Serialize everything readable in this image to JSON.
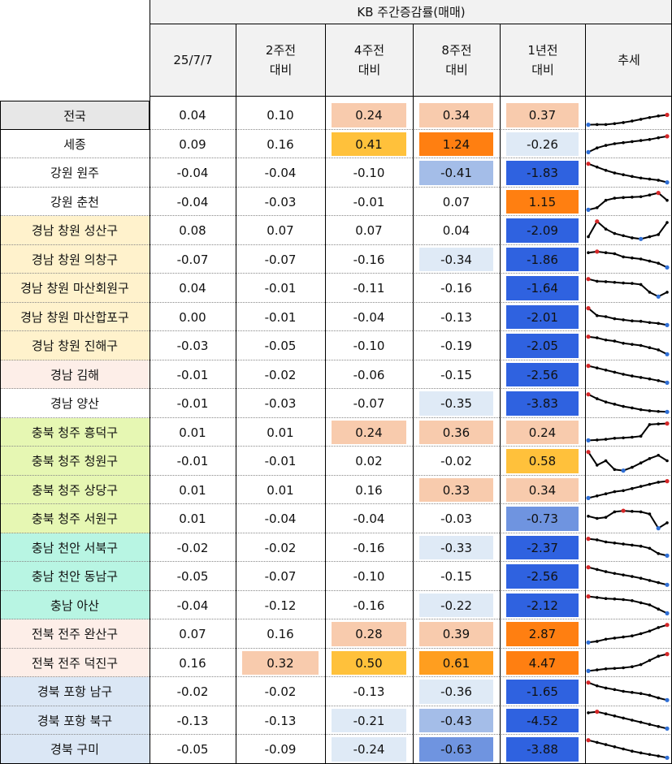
{
  "header": {
    "group_title": "KB 주간증감률(매매)",
    "columns": [
      {
        "line1": "25/7/7",
        "line2": ""
      },
      {
        "line1": "2주전",
        "line2": "대비"
      },
      {
        "line1": "4주전",
        "line2": "대비"
      },
      {
        "line1": "8주전",
        "line2": "대비"
      },
      {
        "line1": "1년전",
        "line2": "대비"
      },
      {
        "line1": "추세",
        "line2": ""
      }
    ]
  },
  "colors": {
    "gridline": "#000000",
    "dotted": "#888888",
    "header_bg": "#f2f2f2",
    "region_gyeongnam_changwon": "#fff2cc",
    "region_gyeongnam_other": "#fdeee8",
    "region_chungbuk": "#e6f7b3",
    "region_chungnam": "#b8f5e3",
    "region_jeonbuk": "#fdeee8",
    "region_gyeongbuk": "#dbe7f5",
    "region_jeonguk": "#e7e7e7",
    "spark_line": "#000000",
    "spark_max": "#d62728",
    "spark_min": "#2f6fd6"
  },
  "rows": [
    {
      "region": "전국",
      "region_bg": "#e7e7e7",
      "values": [
        "0.04",
        "0.10",
        "0.24",
        "0.34",
        "0.37"
      ],
      "fills": [
        "",
        "",
        "#f8cbad",
        "#f8cbad",
        "#f8cbad"
      ],
      "text_colors": [
        "",
        "",
        "",
        "",
        ""
      ],
      "trend": [
        0.05,
        0.06,
        0.06,
        0.1,
        0.15,
        0.22,
        0.3,
        0.38,
        0.45,
        0.5
      ]
    },
    {
      "region": "세종",
      "region_bg": "",
      "values": [
        "0.09",
        "0.16",
        "0.41",
        "1.24",
        "-0.26"
      ],
      "fills": [
        "",
        "",
        "#ffc13b",
        "#ff7f11",
        "#dfeaf6"
      ],
      "text_colors": [
        "",
        "",
        "",
        "",
        ""
      ],
      "trend": [
        0.1,
        0.3,
        0.42,
        0.5,
        0.55,
        0.6,
        0.65,
        0.7,
        0.78,
        0.85
      ]
    },
    {
      "region": "강원 원주",
      "region_bg": "",
      "values": [
        "-0.04",
        "-0.04",
        "-0.10",
        "-0.41",
        "-1.83"
      ],
      "fills": [
        "",
        "",
        "",
        "#a4bde8",
        "#2f62e0"
      ],
      "text_colors": [
        "",
        "",
        "",
        "",
        ""
      ],
      "trend": [
        0.9,
        0.75,
        0.6,
        0.48,
        0.4,
        0.32,
        0.25,
        0.2,
        0.15,
        0.05
      ]
    },
    {
      "region": "강원 춘천",
      "region_bg": "",
      "values": [
        "-0.04",
        "-0.03",
        "-0.01",
        "0.07",
        "1.15"
      ],
      "fills": [
        "",
        "",
        "",
        "",
        "#ff7f11"
      ],
      "text_colors": [
        "",
        "",
        "",
        "",
        ""
      ],
      "trend": [
        0.1,
        0.2,
        0.55,
        0.65,
        0.68,
        0.7,
        0.72,
        0.8,
        0.9,
        0.55
      ]
    },
    {
      "region": "경남 창원 성산구",
      "region_bg": "#fff2cc",
      "values": [
        "0.08",
        "0.07",
        "0.07",
        "0.04",
        "-2.09"
      ],
      "fills": [
        "",
        "",
        "",
        "",
        "#2f62e0"
      ],
      "text_colors": [
        "",
        "",
        "",
        "",
        ""
      ],
      "trend": [
        0.2,
        0.9,
        0.55,
        0.35,
        0.25,
        0.15,
        0.1,
        0.2,
        0.3,
        0.85
      ]
    },
    {
      "region": "경남 창원 의창구",
      "region_bg": "#fff2cc",
      "values": [
        "-0.07",
        "-0.07",
        "-0.16",
        "-0.34",
        "-1.86"
      ],
      "fills": [
        "",
        "",
        "",
        "#dfeaf6",
        "#2f62e0"
      ],
      "text_colors": [
        "",
        "",
        "",
        "",
        ""
      ],
      "trend": [
        0.8,
        0.85,
        0.8,
        0.75,
        0.6,
        0.55,
        0.5,
        0.4,
        0.3,
        0.1
      ]
    },
    {
      "region": "경남 창원 마산회원구",
      "region_bg": "#fff2cc",
      "values": [
        "0.04",
        "-0.01",
        "-0.11",
        "-0.16",
        "-1.64"
      ],
      "fills": [
        "",
        "",
        "",
        "",
        "#2f62e0"
      ],
      "text_colors": [
        "",
        "",
        "",
        "",
        ""
      ],
      "trend": [
        0.9,
        0.8,
        0.78,
        0.75,
        0.72,
        0.7,
        0.65,
        0.3,
        0.1,
        0.3
      ]
    },
    {
      "region": "경남 창원 마산합포구",
      "region_bg": "#fff2cc",
      "values": [
        "0.00",
        "-0.01",
        "-0.04",
        "-0.13",
        "-2.01"
      ],
      "fills": [
        "",
        "",
        "",
        "",
        "#2f62e0"
      ],
      "text_colors": [
        "",
        "",
        "",
        "",
        ""
      ],
      "trend": [
        0.9,
        0.55,
        0.5,
        0.4,
        0.35,
        0.3,
        0.28,
        0.22,
        0.18,
        0.1
      ]
    },
    {
      "region": "경남 창원 진해구",
      "region_bg": "#fff2cc",
      "values": [
        "-0.03",
        "-0.05",
        "-0.10",
        "-0.19",
        "-2.05"
      ],
      "fills": [
        "",
        "",
        "",
        "",
        "#2f62e0"
      ],
      "text_colors": [
        "",
        "",
        "",
        "",
        ""
      ],
      "trend": [
        0.9,
        0.85,
        0.75,
        0.7,
        0.6,
        0.55,
        0.5,
        0.4,
        0.3,
        0.1
      ]
    },
    {
      "region": "경남 김해",
      "region_bg": "#fdeee8",
      "values": [
        "-0.01",
        "-0.02",
        "-0.06",
        "-0.15",
        "-2.56"
      ],
      "fills": [
        "",
        "",
        "",
        "",
        "#2f62e0"
      ],
      "text_colors": [
        "",
        "",
        "",
        "",
        ""
      ],
      "trend": [
        0.9,
        0.8,
        0.7,
        0.6,
        0.5,
        0.42,
        0.35,
        0.28,
        0.2,
        0.1
      ]
    },
    {
      "region": "경남 양산",
      "region_bg": "",
      "values": [
        "-0.01",
        "-0.03",
        "-0.07",
        "-0.35",
        "-3.83"
      ],
      "fills": [
        "",
        "",
        "",
        "#dfeaf6",
        "#2f62e0"
      ],
      "text_colors": [
        "",
        "",
        "",
        "",
        ""
      ],
      "trend": [
        0.9,
        0.7,
        0.55,
        0.45,
        0.35,
        0.28,
        0.2,
        0.15,
        0.12,
        0.1
      ]
    },
    {
      "region": "충북 청주 흥덕구",
      "region_bg": "#e6f7b3",
      "values": [
        "0.01",
        "0.01",
        "0.24",
        "0.36",
        "0.24"
      ],
      "fills": [
        "",
        "",
        "#f8cbad",
        "#f8cbad",
        "#f8cbad"
      ],
      "text_colors": [
        "",
        "",
        "",
        "",
        ""
      ],
      "trend": [
        0.1,
        0.12,
        0.15,
        0.2,
        0.22,
        0.25,
        0.3,
        0.85,
        0.88,
        0.9
      ]
    },
    {
      "region": "충북 청주 청원구",
      "region_bg": "#e6f7b3",
      "values": [
        "-0.01",
        "-0.01",
        "0.02",
        "-0.02",
        "0.58"
      ],
      "fills": [
        "",
        "",
        "",
        "",
        "#ffc13b"
      ],
      "text_colors": [
        "",
        "",
        "",
        "",
        ""
      ],
      "trend": [
        0.9,
        0.3,
        0.5,
        0.1,
        0.05,
        0.2,
        0.4,
        0.6,
        0.75,
        0.5
      ]
    },
    {
      "region": "충북 청주 상당구",
      "region_bg": "#e6f7b3",
      "values": [
        "0.01",
        "0.01",
        "0.16",
        "0.33",
        "0.34"
      ],
      "fills": [
        "",
        "",
        "",
        "#f8cbad",
        "#f8cbad"
      ],
      "text_colors": [
        "",
        "",
        "",
        "",
        ""
      ],
      "trend": [
        0.1,
        0.2,
        0.3,
        0.4,
        0.45,
        0.55,
        0.65,
        0.75,
        0.85,
        0.9
      ]
    },
    {
      "region": "충북 청주 서원구",
      "region_bg": "#e6f7b3",
      "values": [
        "0.01",
        "-0.04",
        "-0.04",
        "-0.03",
        "-0.73"
      ],
      "fills": [
        "",
        "",
        "",
        "",
        "#6f94e0"
      ],
      "text_colors": [
        "",
        "",
        "",
        "",
        ""
      ],
      "trend": [
        0.6,
        0.5,
        0.55,
        0.8,
        0.85,
        0.82,
        0.8,
        0.7,
        0.05,
        0.3
      ]
    },
    {
      "region": "충남 천안 서북구",
      "region_bg": "#b8f5e3",
      "values": [
        "-0.02",
        "-0.02",
        "-0.16",
        "-0.33",
        "-2.37"
      ],
      "fills": [
        "",
        "",
        "",
        "#dfeaf6",
        "#2f62e0"
      ],
      "text_colors": [
        "",
        "",
        "",
        "",
        ""
      ],
      "trend": [
        0.9,
        0.85,
        0.75,
        0.7,
        0.65,
        0.6,
        0.55,
        0.45,
        0.2,
        0.1
      ]
    },
    {
      "region": "충남 천안 동남구",
      "region_bg": "#b8f5e3",
      "values": [
        "-0.05",
        "-0.07",
        "-0.10",
        "-0.15",
        "-2.56"
      ],
      "fills": [
        "",
        "",
        "",
        "",
        "#2f62e0"
      ],
      "text_colors": [
        "",
        "",
        "",
        "",
        ""
      ],
      "trend": [
        0.9,
        0.8,
        0.7,
        0.62,
        0.55,
        0.48,
        0.4,
        0.3,
        0.2,
        0.1
      ]
    },
    {
      "region": "충남 아산",
      "region_bg": "#b8f5e3",
      "values": [
        "-0.04",
        "-0.12",
        "-0.16",
        "-0.22",
        "-2.12"
      ],
      "fills": [
        "",
        "",
        "",
        "#dfeaf6",
        "#2f62e0"
      ],
      "text_colors": [
        "",
        "",
        "",
        "",
        ""
      ],
      "trend": [
        0.9,
        0.85,
        0.8,
        0.78,
        0.75,
        0.7,
        0.6,
        0.5,
        0.3,
        0.1
      ]
    },
    {
      "region": "전북 전주 완산구",
      "region_bg": "#fdeee8",
      "values": [
        "0.07",
        "0.16",
        "0.28",
        "0.39",
        "2.87"
      ],
      "fills": [
        "",
        "",
        "#f8cbad",
        "#f8cbad",
        "#ff7f11"
      ],
      "text_colors": [
        "",
        "",
        "",
        "",
        ""
      ],
      "trend": [
        0.1,
        0.15,
        0.25,
        0.3,
        0.35,
        0.4,
        0.5,
        0.62,
        0.78,
        0.9
      ]
    },
    {
      "region": "전북 전주 덕진구",
      "region_bg": "#fdeee8",
      "values": [
        "0.16",
        "0.32",
        "0.50",
        "0.61",
        "4.47"
      ],
      "fills": [
        "",
        "#f8cbad",
        "#ffc13b",
        "#ff9e1f",
        "#ff7f11"
      ],
      "text_colors": [
        "",
        "",
        "",
        "",
        ""
      ],
      "trend": [
        0.1,
        0.15,
        0.2,
        0.22,
        0.25,
        0.3,
        0.4,
        0.6,
        0.8,
        0.9
      ]
    },
    {
      "region": "경북 포항 남구",
      "region_bg": "#dbe7f5",
      "values": [
        "-0.02",
        "-0.02",
        "-0.13",
        "-0.36",
        "-1.65"
      ],
      "fills": [
        "",
        "",
        "",
        "#dfeaf6",
        "#2f62e0"
      ],
      "text_colors": [
        "",
        "",
        "",
        "",
        ""
      ],
      "trend": [
        0.9,
        0.75,
        0.65,
        0.58,
        0.5,
        0.45,
        0.4,
        0.32,
        0.2,
        0.1
      ]
    },
    {
      "region": "경북 포항 북구",
      "region_bg": "#dbe7f5",
      "values": [
        "-0.13",
        "-0.13",
        "-0.21",
        "-0.43",
        "-4.52"
      ],
      "fills": [
        "",
        "",
        "#dfeaf6",
        "#a4bde8",
        "#2f62e0"
      ],
      "text_colors": [
        "",
        "",
        "",
        "",
        ""
      ],
      "trend": [
        0.85,
        0.9,
        0.8,
        0.7,
        0.6,
        0.5,
        0.4,
        0.3,
        0.2,
        0.1
      ]
    },
    {
      "region": "경북 구미",
      "region_bg": "#dbe7f5",
      "values": [
        "-0.05",
        "-0.09",
        "-0.24",
        "-0.63",
        "-3.88"
      ],
      "fills": [
        "",
        "",
        "#dfeaf6",
        "#6f94e0",
        "#2f62e0"
      ],
      "text_colors": [
        "",
        "",
        "",
        "",
        ""
      ],
      "trend": [
        0.9,
        0.8,
        0.7,
        0.6,
        0.5,
        0.4,
        0.32,
        0.25,
        0.18,
        0.1
      ]
    }
  ]
}
